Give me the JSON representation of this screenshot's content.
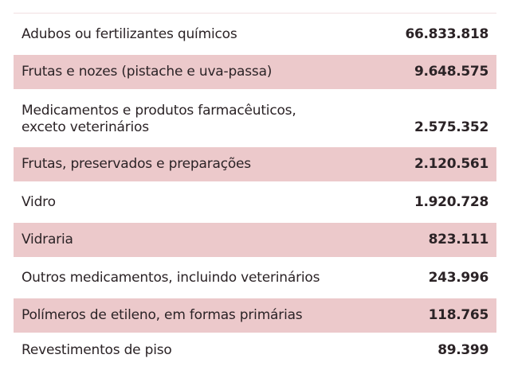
{
  "table": {
    "colors": {
      "shaded_row": "#ecc9cb",
      "text": "#2b2326",
      "rule": "#f1dfe1"
    },
    "rows": [
      {
        "label": "Adubos ou fertilizantes químicos",
        "value": "66.833.818",
        "shaded": false
      },
      {
        "label": "Frutas e nozes (pistache e uva-passa)",
        "value": "9.648.575",
        "shaded": true
      },
      {
        "label": "Medicamentos e produtos farmacêuticos, exceto veterinários",
        "label_line1": "Medicamentos e produtos farmacêuticos,",
        "label_line2": "exceto veterinários",
        "value": "2.575.352",
        "shaded": false
      },
      {
        "label": "Frutas, preservados e preparações",
        "value": "2.120.561",
        "shaded": true
      },
      {
        "label": "Vidro",
        "value": "1.920.728",
        "shaded": false
      },
      {
        "label": "Vidraria",
        "value": "823.111",
        "shaded": true
      },
      {
        "label": "Outros medicamentos, incluindo veterinários",
        "value": "243.996",
        "shaded": false
      },
      {
        "label": "Polímeros de etileno, em formas primárias",
        "value": "118.765",
        "shaded": true
      },
      {
        "label": "Revestimentos de piso",
        "value": "89.399",
        "shaded": false
      }
    ]
  }
}
